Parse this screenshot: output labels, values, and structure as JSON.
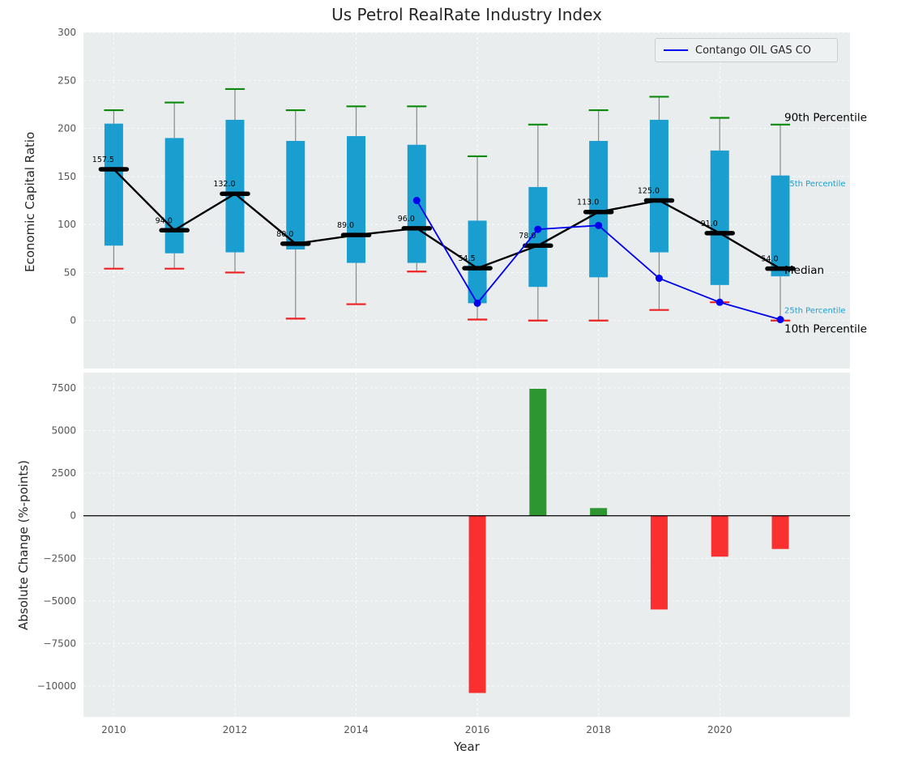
{
  "chart_data": [
    {
      "type": "boxplot",
      "title": "Us Petrol RealRate Industry Index",
      "ylabel": "Economic Capital Ratio",
      "ylim": [
        -50,
        300
      ],
      "yticks": [
        0,
        50,
        100,
        150,
        200,
        250,
        300
      ],
      "xlim": [
        2009.5,
        2022.15
      ],
      "grid": true,
      "legend_position": "upper right",
      "boxes": {
        "years": [
          2010,
          2011,
          2012,
          2013,
          2014,
          2015,
          2016,
          2017,
          2018,
          2019,
          2020,
          2021
        ],
        "p90": [
          219,
          227,
          241,
          219,
          223,
          223,
          171,
          204,
          219,
          233,
          211,
          204
        ],
        "q75": [
          205,
          190,
          209,
          187,
          192,
          183,
          104,
          139,
          187,
          209,
          177,
          151
        ],
        "median": [
          157.5,
          94.0,
          132.0,
          80.0,
          89.0,
          96.0,
          54.5,
          78.0,
          113.0,
          125.0,
          91.0,
          54.0
        ],
        "q25": [
          78,
          70,
          71,
          74,
          60,
          60,
          18,
          35,
          45,
          71,
          37,
          46
        ],
        "p10": [
          54,
          54,
          50,
          2,
          17,
          51,
          1,
          0,
          0,
          11,
          19,
          0
        ]
      },
      "median_labels": [
        "157.5",
        "94.0",
        "132.0",
        "80.0",
        "89.0",
        "96.0",
        "54.5",
        "78.0",
        "113.0",
        "125.0",
        "91.0",
        "54.0"
      ],
      "company_line": {
        "name": "Contango OIL GAS CO",
        "x": [
          2015,
          2016,
          2017,
          2018,
          2019,
          2020,
          2021
        ],
        "y": [
          125,
          18,
          95,
          99,
          44,
          19,
          1
        ],
        "color": "#0000ee"
      },
      "right_annotations": [
        {
          "text": "90th Percentile",
          "y": 211,
          "color": "#000000",
          "size": 13.5
        },
        {
          "text": "75th Percentile",
          "y": 143,
          "color": "#1a9ed0",
          "size": 10
        },
        {
          "text": "Median",
          "y": 52,
          "color": "#000000",
          "size": 13.5
        },
        {
          "text": "25th Percentile",
          "y": 11,
          "color": "#1a9ed0",
          "size": 10
        },
        {
          "text": "10th Percentile",
          "y": -9,
          "color": "#000000",
          "size": 13.5
        }
      ],
      "colors": {
        "box": "#1a9ed0",
        "p90_cap": "#0c8a0c",
        "p10_cap": "#ee2020",
        "whisker": "#8a8a8a",
        "median": "#000000",
        "panel_bg": "#e9edee",
        "grid": "#fafcfc"
      }
    },
    {
      "type": "bar",
      "ylabel": "Absolute Change (%-points)",
      "xlabel": "Year",
      "ylim": [
        -11800,
        8400
      ],
      "yticks": [
        7500,
        5000,
        2500,
        0,
        -2500,
        -5000,
        -7500,
        -10000
      ],
      "xticks": [
        2010,
        2012,
        2014,
        2016,
        2018,
        2020
      ],
      "bars": {
        "years": [
          2016,
          2017,
          2018,
          2019,
          2020,
          2021
        ],
        "values": [
          -10400,
          7450,
          450,
          -5500,
          -2400,
          -1950
        ]
      },
      "colors": {
        "positive": "#2e9630",
        "negative": "#fa3030",
        "zero_line": "#000000",
        "panel_bg": "#e9edee",
        "grid": "#fafcfc"
      }
    }
  ]
}
